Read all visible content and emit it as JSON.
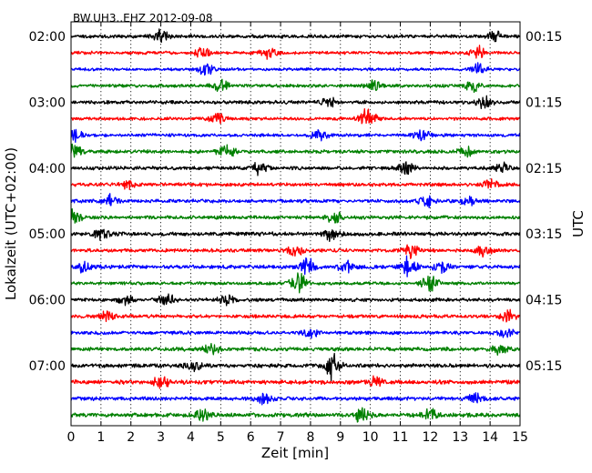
{
  "chart_data": {
    "type": "line",
    "title": "BW.UH3..EHZ 2012-09-08",
    "xlabel": "Zeit  [min]",
    "ylabel": "Lokalzeit (UTC+02:00)",
    "ylabel_right": "UTC",
    "xlim": [
      0,
      15
    ],
    "x_ticks": [
      "0",
      "1",
      "2",
      "3",
      "4",
      "5",
      "6",
      "7",
      "8",
      "9",
      "10",
      "11",
      "12",
      "13",
      "14",
      "15"
    ],
    "grid": "vertical-dotted",
    "left_time_labels": [
      "02:00",
      "03:00",
      "04:00",
      "05:00",
      "06:00",
      "07:00"
    ],
    "right_time_labels": [
      "00:15",
      "01:15",
      "02:15",
      "03:15",
      "04:15",
      "05:15"
    ],
    "rows_per_hour": 4,
    "trace_colors": [
      "#000000",
      "#ff0000",
      "#0000ff",
      "#008000"
    ],
    "series": [
      {
        "start": "02:00",
        "color": "#000000",
        "base": 0.55,
        "events": [
          [
            3.0,
            1.7
          ],
          [
            14.2,
            1.5
          ]
        ]
      },
      {
        "start": "02:15",
        "color": "#ff0000",
        "base": 0.5,
        "events": [
          [
            4.4,
            1.5
          ],
          [
            6.6,
            1.6
          ],
          [
            13.6,
            1.7
          ]
        ]
      },
      {
        "start": "02:30",
        "color": "#0000ff",
        "base": 0.45,
        "events": [
          [
            4.5,
            1.8
          ],
          [
            13.6,
            1.6
          ]
        ]
      },
      {
        "start": "02:45",
        "color": "#008000",
        "base": 0.5,
        "events": [
          [
            5.0,
            1.6
          ],
          [
            10.1,
            1.4
          ],
          [
            13.4,
            1.4
          ]
        ]
      },
      {
        "start": "03:00",
        "color": "#000000",
        "base": 0.55,
        "events": [
          [
            13.8,
            1.6
          ],
          [
            8.6,
            1.3
          ]
        ]
      },
      {
        "start": "03:15",
        "color": "#ff0000",
        "base": 0.5,
        "events": [
          [
            4.9,
            1.5
          ],
          [
            9.9,
            3.2
          ]
        ]
      },
      {
        "start": "03:30",
        "color": "#0000ff",
        "base": 0.5,
        "events": [
          [
            8.3,
            1.6
          ],
          [
            0.1,
            1.8
          ],
          [
            11.7,
            1.4
          ]
        ]
      },
      {
        "start": "03:45",
        "color": "#008000",
        "base": 0.55,
        "events": [
          [
            5.2,
            1.8
          ],
          [
            13.2,
            1.5
          ],
          [
            0.1,
            2.0
          ]
        ]
      },
      {
        "start": "04:00",
        "color": "#000000",
        "base": 0.55,
        "events": [
          [
            11.2,
            1.6
          ],
          [
            6.3,
            1.5
          ],
          [
            14.4,
            1.4
          ]
        ]
      },
      {
        "start": "04:15",
        "color": "#ff0000",
        "base": 0.55,
        "events": [
          [
            1.9,
            1.3
          ],
          [
            14.0,
            1.4
          ]
        ]
      },
      {
        "start": "04:30",
        "color": "#0000ff",
        "base": 0.55,
        "events": [
          [
            1.3,
            1.5
          ],
          [
            11.9,
            1.6
          ],
          [
            13.3,
            1.5
          ]
        ]
      },
      {
        "start": "04:45",
        "color": "#008000",
        "base": 0.55,
        "events": [
          [
            8.8,
            1.5
          ],
          [
            0.1,
            1.8
          ]
        ]
      },
      {
        "start": "05:00",
        "color": "#000000",
        "base": 0.6,
        "events": [
          [
            8.7,
            1.8
          ],
          [
            1.0,
            1.4
          ]
        ]
      },
      {
        "start": "05:15",
        "color": "#ff0000",
        "base": 0.55,
        "events": [
          [
            7.5,
            1.6
          ],
          [
            11.3,
            2.2
          ],
          [
            13.8,
            1.5
          ]
        ]
      },
      {
        "start": "05:30",
        "color": "#0000ff",
        "base": 0.6,
        "events": [
          [
            0.4,
            1.6
          ],
          [
            7.9,
            2.2
          ],
          [
            9.2,
            1.5
          ],
          [
            11.3,
            2.4
          ],
          [
            12.4,
            1.6
          ]
        ]
      },
      {
        "start": "05:45",
        "color": "#008000",
        "base": 0.5,
        "events": [
          [
            7.6,
            2.6
          ],
          [
            12.0,
            2.4
          ]
        ]
      },
      {
        "start": "06:00",
        "color": "#000000",
        "base": 0.55,
        "events": [
          [
            3.2,
            2.0
          ],
          [
            5.2,
            1.5
          ],
          [
            1.8,
            1.4
          ]
        ]
      },
      {
        "start": "06:15",
        "color": "#ff0000",
        "base": 0.55,
        "events": [
          [
            14.6,
            1.4
          ],
          [
            1.2,
            1.3
          ]
        ]
      },
      {
        "start": "06:30",
        "color": "#0000ff",
        "base": 0.55,
        "events": [
          [
            8.0,
            1.3
          ],
          [
            14.5,
            1.3
          ]
        ]
      },
      {
        "start": "06:45",
        "color": "#008000",
        "base": 0.6,
        "events": [
          [
            4.7,
            1.4
          ],
          [
            14.3,
            1.4
          ]
        ]
      },
      {
        "start": "07:00",
        "color": "#000000",
        "base": 0.6,
        "events": [
          [
            4.1,
            1.9
          ],
          [
            8.7,
            3.4
          ]
        ]
      },
      {
        "start": "07:15",
        "color": "#ff0000",
        "base": 0.65,
        "events": [
          [
            10.2,
            1.4
          ],
          [
            3.0,
            1.4
          ]
        ]
      },
      {
        "start": "07:30",
        "color": "#0000ff",
        "base": 0.6,
        "events": [
          [
            6.4,
            1.5
          ],
          [
            13.5,
            1.4
          ]
        ]
      },
      {
        "start": "07:45",
        "color": "#008000",
        "base": 0.65,
        "events": [
          [
            9.7,
            2.1
          ],
          [
            12.0,
            1.5
          ],
          [
            4.4,
            1.4
          ]
        ]
      }
    ]
  }
}
